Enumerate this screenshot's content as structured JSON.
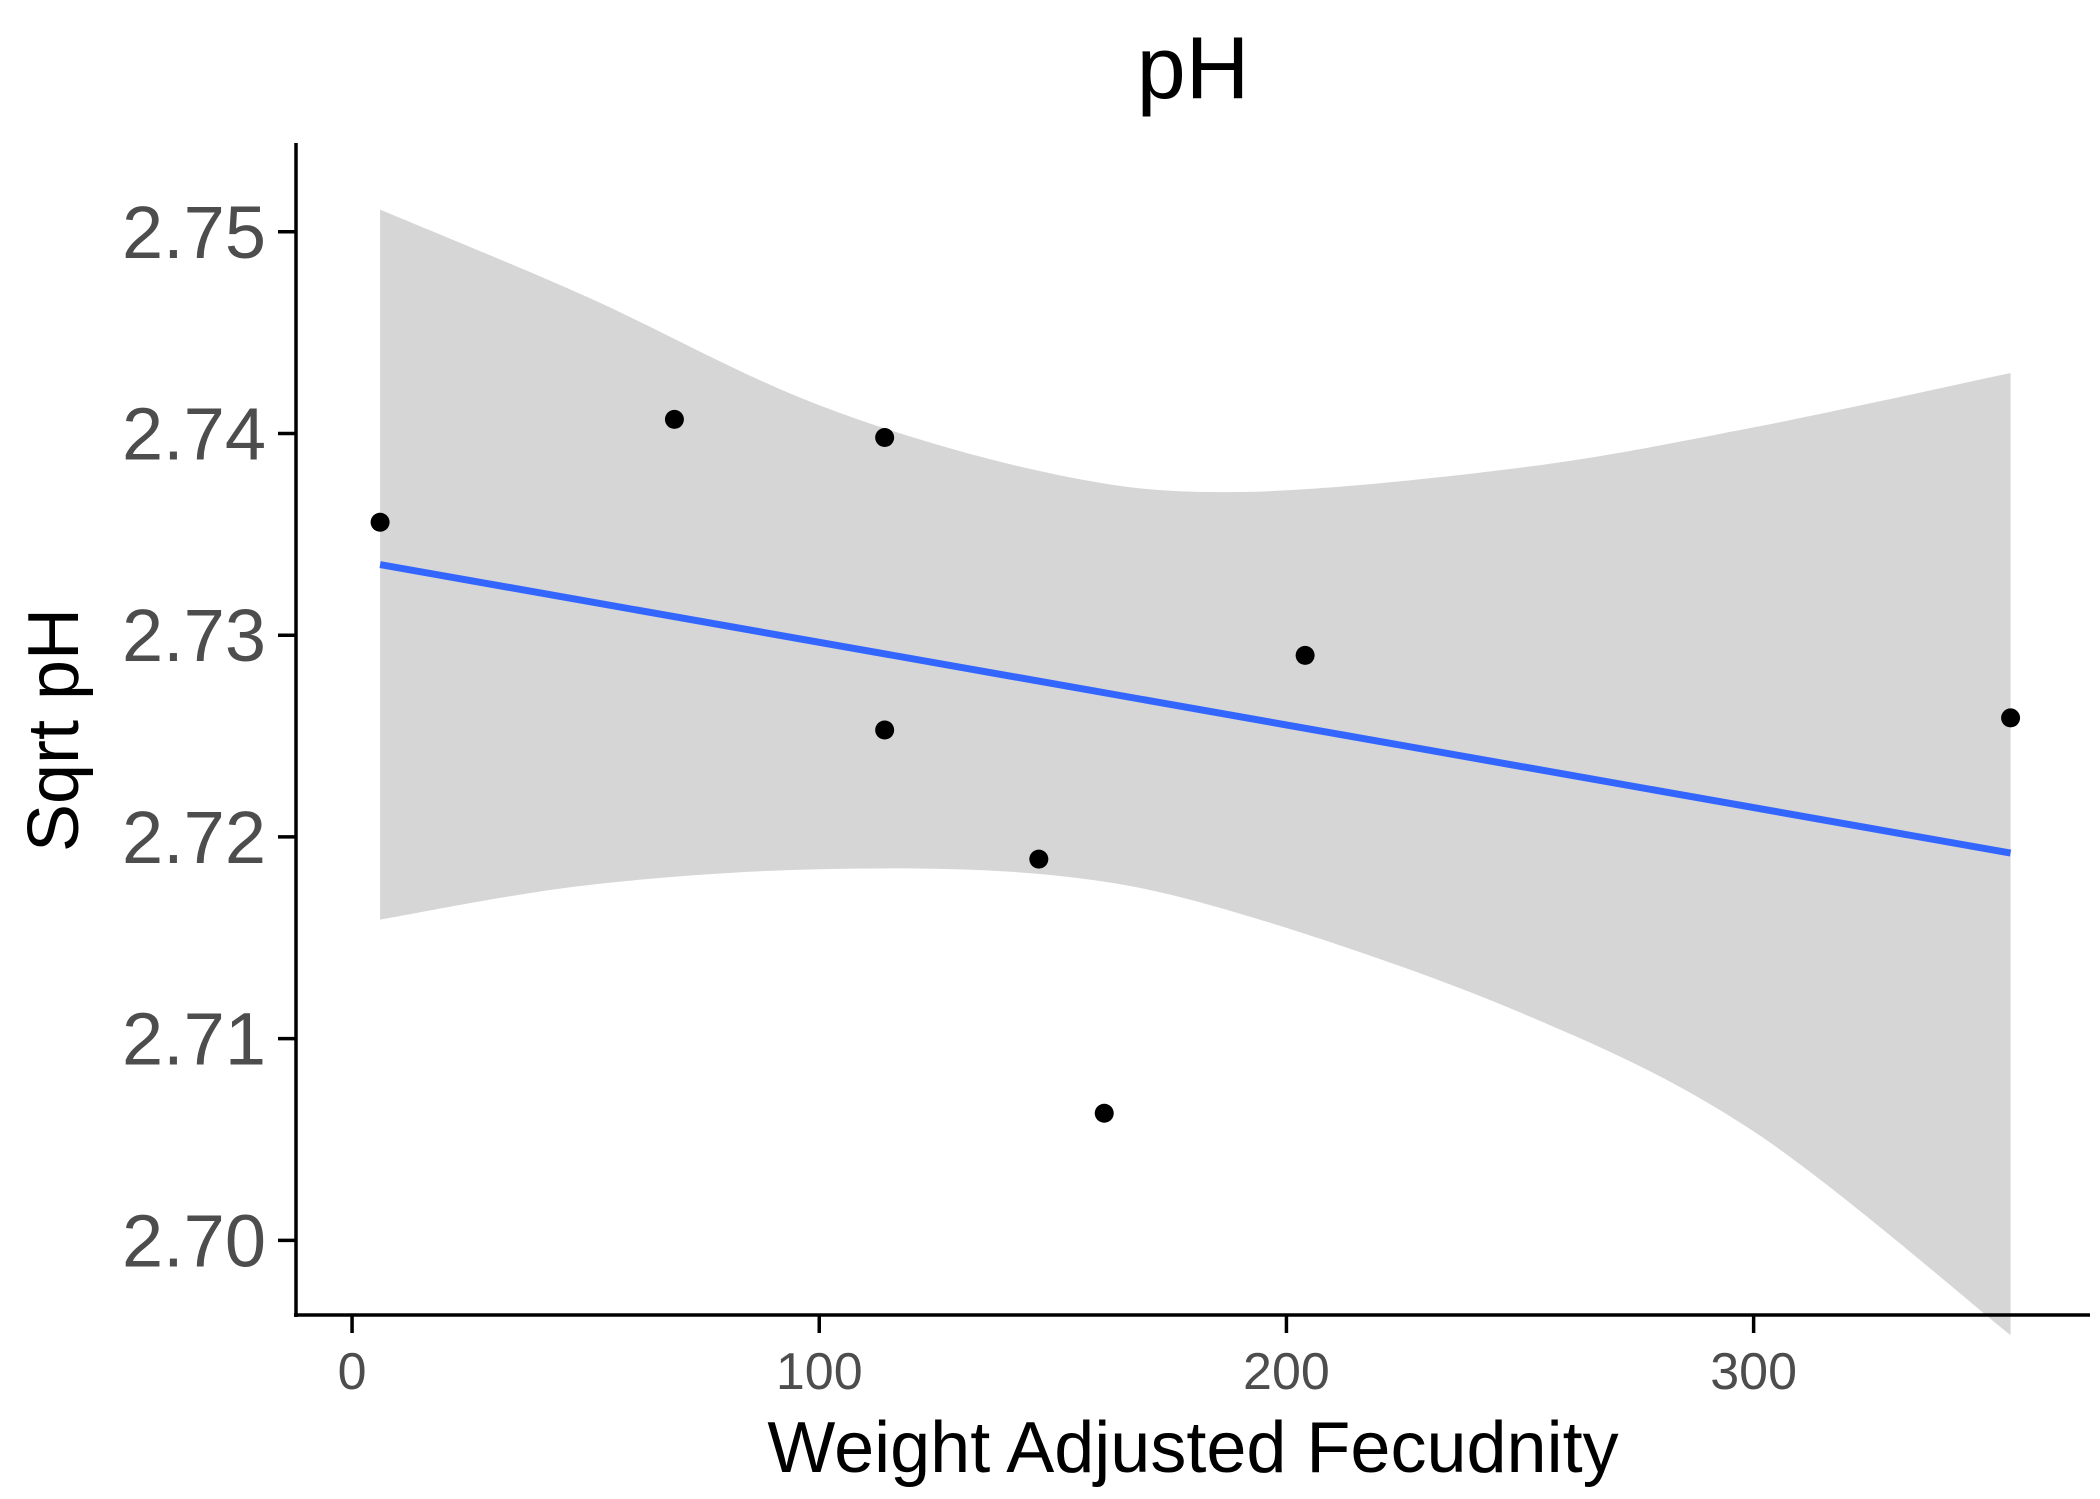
{
  "chart_data": {
    "type": "scatter",
    "title": "pH",
    "xlabel": "Weight Adjusted Fecudnity",
    "ylabel": "Sqrt pH",
    "xlim": [
      -12,
      372
    ],
    "ylim": [
      2.6963,
      2.7544
    ],
    "xticks": [
      0,
      100,
      200,
      300
    ],
    "xtick_labels": [
      "0",
      "100",
      "200",
      "300"
    ],
    "yticks": [
      2.7,
      2.71,
      2.72,
      2.73,
      2.74,
      2.75
    ],
    "ytick_labels": [
      "2.70",
      "2.71",
      "2.72",
      "2.73",
      "2.74",
      "2.75"
    ],
    "grid": false,
    "legend": "none",
    "points": [
      {
        "x": 6,
        "y": 2.7356
      },
      {
        "x": 69,
        "y": 2.7407
      },
      {
        "x": 114,
        "y": 2.7398
      },
      {
        "x": 114,
        "y": 2.7253
      },
      {
        "x": 147,
        "y": 2.7189
      },
      {
        "x": 161,
        "y": 2.7063
      },
      {
        "x": 204,
        "y": 2.729
      },
      {
        "x": 355,
        "y": 2.7259
      }
    ],
    "fit_line": {
      "x": [
        6,
        355
      ],
      "y": [
        2.7335,
        2.7192
      ]
    },
    "confidence_band": {
      "x": [
        6,
        50,
        100,
        150,
        190,
        250,
        300,
        355
      ],
      "upper": [
        2.7511,
        2.7468,
        2.7414,
        2.738,
        2.7371,
        2.7383,
        2.7403,
        2.743
      ],
      "lower": [
        2.7159,
        2.7176,
        2.7184,
        2.7181,
        2.7162,
        2.7113,
        2.7054,
        2.6953
      ]
    },
    "colors": {
      "fit_line": "#3366ff",
      "band": "#d6d6d6",
      "points": "#000000"
    }
  }
}
